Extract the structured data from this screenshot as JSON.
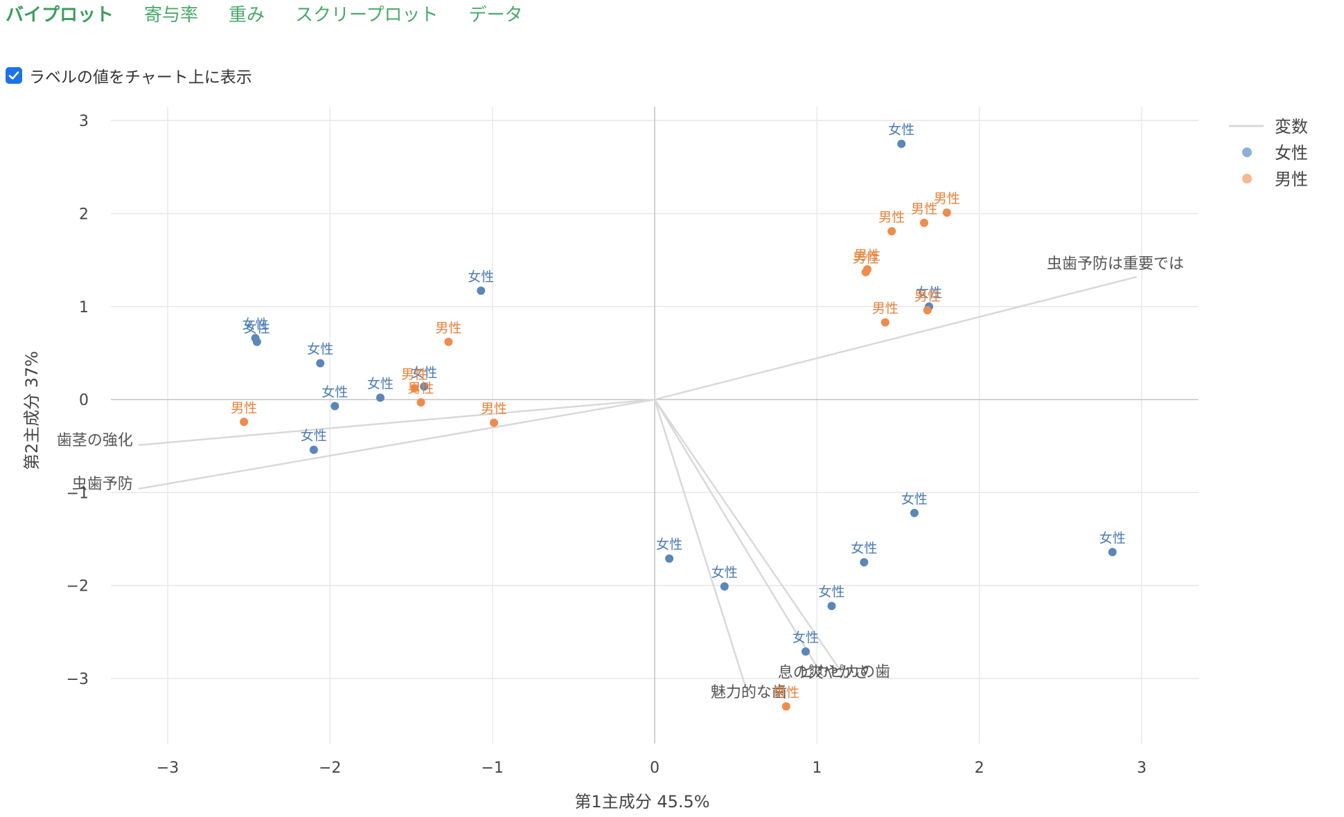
{
  "tabs": [
    {
      "label": "バイプロット",
      "active": true
    },
    {
      "label": "寄与率",
      "active": false
    },
    {
      "label": "重み",
      "active": false
    },
    {
      "label": "スクリープロット",
      "active": false
    },
    {
      "label": "データ",
      "active": false
    }
  ],
  "option": {
    "label": "ラベルの値をチャート上に表示",
    "checked": true
  },
  "colors": {
    "female": "#5b87b8",
    "male": "#ef8c4d",
    "female_label": "#4a7ab5",
    "male_label": "#e8813a",
    "loading": "#d9d9d9",
    "tab": "#4aa86b",
    "checkbox": "#1a73e8"
  },
  "chart_data": {
    "type": "scatter",
    "xlabel": "第1主成分 45.5%",
    "ylabel": "第2主成分 37%",
    "xlim": [
      -3.35,
      3.35
    ],
    "ylim": [
      -3.7,
      3.15
    ],
    "xticks": [
      -3,
      -2,
      -1,
      0,
      1,
      2,
      3
    ],
    "yticks": [
      -3,
      -2,
      -1,
      0,
      1,
      2,
      3
    ],
    "xtick_labels": [
      "−3",
      "−2",
      "−1",
      "0",
      "1",
      "2",
      "3"
    ],
    "ytick_labels": [
      "−3",
      "−2",
      "−1",
      "0",
      "1",
      "2",
      "3"
    ],
    "grid": true,
    "legend": {
      "position": "top-right",
      "items": [
        {
          "label": "変数",
          "kind": "line"
        },
        {
          "label": "女性",
          "kind": "point",
          "series": "female"
        },
        {
          "label": "男性",
          "kind": "point",
          "series": "male"
        }
      ]
    },
    "loadings": [
      {
        "name": "虫歯予防は重要では",
        "x": 2.97,
        "y": 1.32
      },
      {
        "name": "歯茎の強化",
        "x": -3.18,
        "y": -0.49
      },
      {
        "name": "虫歯予防",
        "x": -3.18,
        "y": -0.96
      },
      {
        "name": "ピカピカの歯",
        "x": 1.17,
        "y": -2.98
      },
      {
        "name": "息の爽やかさ",
        "x": 1.04,
        "y": -2.99
      },
      {
        "name": "魅力的な歯",
        "x": 0.58,
        "y": -3.2
      }
    ],
    "series": [
      {
        "name": "女性",
        "key": "female",
        "points": [
          {
            "x": 1.52,
            "y": 2.75
          },
          {
            "x": -1.07,
            "y": 1.17
          },
          {
            "x": -2.46,
            "y": 0.66
          },
          {
            "x": -2.45,
            "y": 0.62
          },
          {
            "x": -2.06,
            "y": 0.39
          },
          {
            "x": -1.97,
            "y": -0.07
          },
          {
            "x": -1.69,
            "y": 0.02
          },
          {
            "x": -1.42,
            "y": 0.14
          },
          {
            "x": -2.1,
            "y": -0.54
          },
          {
            "x": 1.69,
            "y": 1.0
          },
          {
            "x": 1.6,
            "y": -1.22
          },
          {
            "x": 2.82,
            "y": -1.64
          },
          {
            "x": 0.09,
            "y": -1.71
          },
          {
            "x": 0.43,
            "y": -2.01
          },
          {
            "x": 1.29,
            "y": -1.75
          },
          {
            "x": 1.09,
            "y": -2.22
          },
          {
            "x": 0.93,
            "y": -2.71
          }
        ]
      },
      {
        "name": "男性",
        "key": "male",
        "points": [
          {
            "x": 1.8,
            "y": 2.01
          },
          {
            "x": 1.66,
            "y": 1.9
          },
          {
            "x": 1.46,
            "y": 1.81
          },
          {
            "x": 1.31,
            "y": 1.4
          },
          {
            "x": 1.3,
            "y": 1.37
          },
          {
            "x": 1.42,
            "y": 0.83
          },
          {
            "x": 1.68,
            "y": 0.96
          },
          {
            "x": -1.27,
            "y": 0.62
          },
          {
            "x": -1.48,
            "y": 0.12
          },
          {
            "x": -1.44,
            "y": -0.03
          },
          {
            "x": -0.99,
            "y": -0.25
          },
          {
            "x": -2.53,
            "y": -0.24
          },
          {
            "x": 0.81,
            "y": -3.3
          }
        ]
      }
    ],
    "point_label_visible": true
  }
}
